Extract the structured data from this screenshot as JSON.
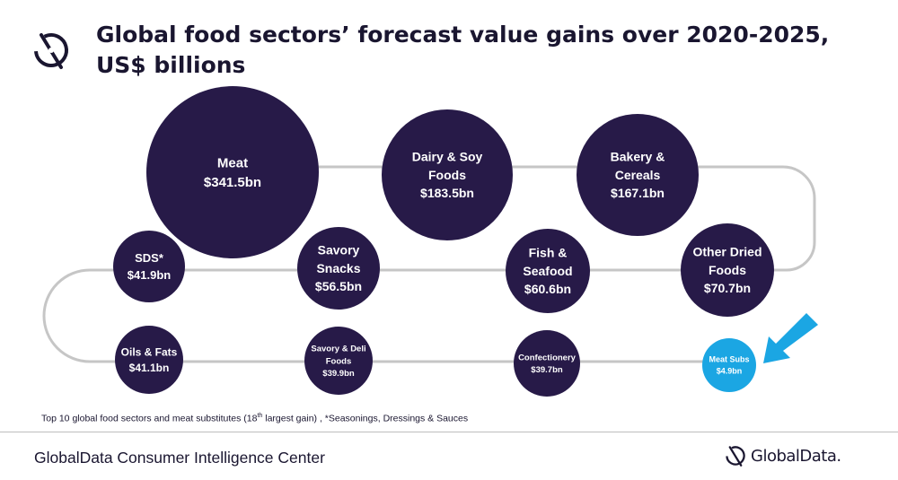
{
  "header": {
    "title": "Global food sectors’ forecast value gains over 2020-2025, US$ billions"
  },
  "chart_data": {
    "type": "bubble",
    "title": "Global food sectors’ forecast value gains over 2020-2025, US$ billions",
    "unit": "US$ billions",
    "items": [
      {
        "name": "Meat",
        "value": 341.5,
        "label": [
          "Meat",
          "$341.5bn"
        ]
      },
      {
        "name": "Dairy & Soy Foods",
        "value": 183.5,
        "label": [
          "Dairy & Soy",
          "Foods",
          "$183.5bn"
        ]
      },
      {
        "name": "Bakery & Cereals",
        "value": 167.1,
        "label": [
          "Bakery &",
          "Cereals",
          "$167.1bn"
        ]
      },
      {
        "name": "Other Dried Foods",
        "value": 70.7,
        "label": [
          "Other Dried",
          "Foods",
          "$70.7bn"
        ]
      },
      {
        "name": "Fish & Seafood",
        "value": 60.6,
        "label": [
          "Fish &",
          "Seafood",
          "$60.6bn"
        ]
      },
      {
        "name": "Savory Snacks",
        "value": 56.5,
        "label": [
          "Savory",
          "Snacks",
          "$56.5bn"
        ]
      },
      {
        "name": "SDS*",
        "value": 41.9,
        "label": [
          "SDS*",
          "$41.9bn"
        ]
      },
      {
        "name": "Oils & Fats",
        "value": 41.1,
        "label": [
          "Oils & Fats",
          "$41.1bn"
        ]
      },
      {
        "name": "Savory & Deli Foods",
        "value": 39.9,
        "label": [
          "Savory & Deli",
          "Foods",
          "$39.9bn"
        ]
      },
      {
        "name": "Confectionery",
        "value": 39.7,
        "label": [
          "Confectionery",
          "$39.7bn"
        ]
      },
      {
        "name": "Meat Subs",
        "value": 4.9,
        "label": [
          "Meat Subs",
          "$4.9bn"
        ],
        "highlight": true
      }
    ],
    "colors": {
      "bubble": "#271a48",
      "highlight": "#1ba6e3",
      "arrow": "#1ba6e3",
      "path": "#c6c6c6"
    }
  },
  "footnote": {
    "before_sup": "Top 10 global food sectors and meat substitutes (18",
    "sup": "th",
    "after_sup": " largest gain) , *Seasonings,  Dressings & Sauces"
  },
  "footer": {
    "source": "GlobalData Consumer Intelligence Center",
    "brand": "GlobalData."
  }
}
